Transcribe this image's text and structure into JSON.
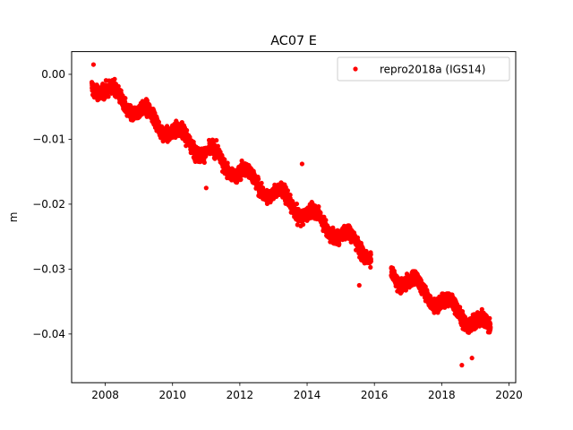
{
  "chart_data": {
    "type": "scatter",
    "title": "AC07 E",
    "xlabel": "",
    "ylabel": "m",
    "xlim": [
      2007.0,
      2020.2
    ],
    "ylim": [
      -0.0475,
      0.0035
    ],
    "xticks": [
      2008,
      2010,
      2012,
      2014,
      2016,
      2018,
      2020
    ],
    "yticks": [
      0.0,
      -0.01,
      -0.02,
      -0.03,
      -0.04
    ],
    "ytick_labels": [
      "0.00",
      "−0.01",
      "−0.02",
      "−0.03",
      "−0.04"
    ],
    "grid": false,
    "legend": {
      "position": "top-right",
      "entries": [
        "repro2018a (IGS14)"
      ]
    },
    "series": [
      {
        "name": "repro2018a (IGS14)",
        "color": "#ff0000",
        "marker": "circle",
        "segments": [
          {
            "x_start": 2007.6,
            "x_end": 2015.9,
            "y_start": -0.0012,
            "y_end": -0.0275
          },
          {
            "x_start": 2016.5,
            "x_end": 2019.45,
            "y_start": -0.0305,
            "y_end": -0.0395
          }
        ],
        "notable_points": [
          {
            "x": 2007.65,
            "y": 0.0015
          },
          {
            "x": 2013.85,
            "y": -0.0138
          },
          {
            "x": 2018.6,
            "y": -0.0448
          },
          {
            "x": 2018.9,
            "y": -0.0437
          },
          {
            "x": 2011.0,
            "y": -0.0175
          },
          {
            "x": 2015.55,
            "y": -0.0325
          }
        ],
        "approx_points": 4000
      }
    ]
  }
}
